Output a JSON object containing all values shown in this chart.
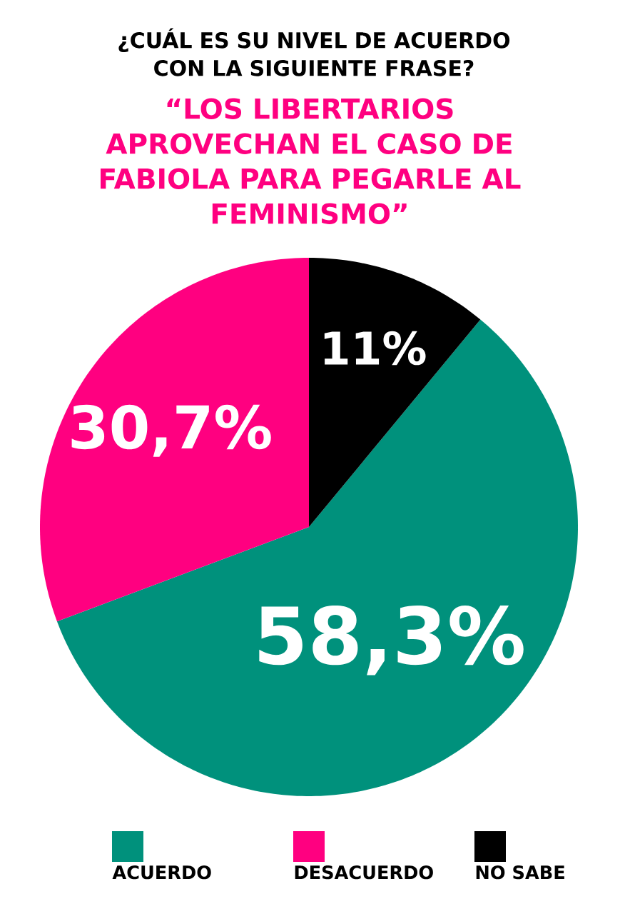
{
  "chart_data": {
    "type": "pie",
    "title": "¿CUÁL ES SU NIVEL DE ACUERDO CON LA SIGUIENTE FRASE?",
    "subtitle": "“LOS LIBERTARIOS APROVECHAN EL CASO DE FABIOLA PARA PEGARLE AL FEMINISMO”",
    "categories": [
      "ACUERDO",
      "DESACUERDO",
      "NO SABE"
    ],
    "values": [
      58.3,
      30.7,
      11
    ],
    "colors": [
      "#00917c",
      "#ff0080",
      "#000000"
    ],
    "value_labels": [
      "58,3%",
      "30,7%",
      "11%"
    ],
    "legend": "bottom"
  }
}
